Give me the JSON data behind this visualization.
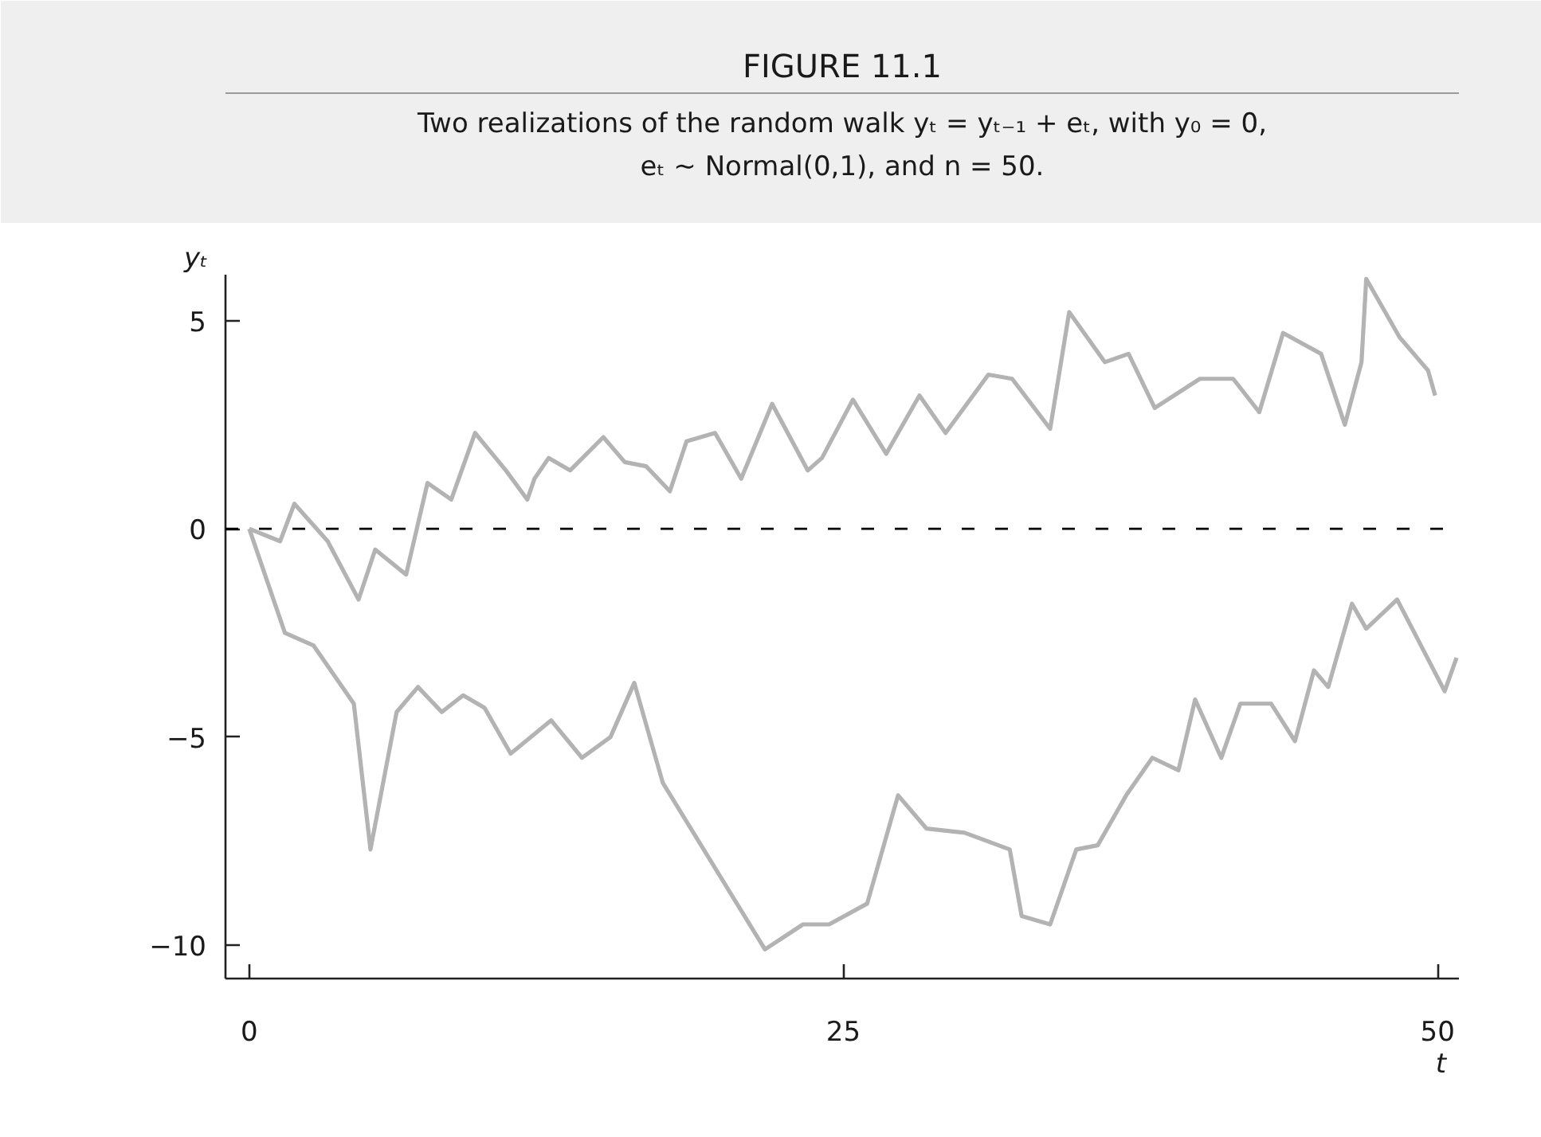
{
  "chart_data": {
    "type": "line",
    "title": "FIGURE 11.1",
    "subtitle": "Two realizations of the random walk yₜ = yₜ₋₁ + eₜ, with y₀ = 0, eₜ ∼ Normal(0,1), and n = 50.",
    "xlabel": "t",
    "ylabel": "yₜ",
    "xlim": [
      -1,
      50.9
    ],
    "ylim": [
      -10.8,
      6.1
    ],
    "xticks": [
      0,
      25,
      50
    ],
    "yticks": [
      {
        "value": -10,
        "label": "−10"
      },
      {
        "value": -5,
        "label": "−5"
      },
      0,
      5
    ],
    "ref_lines": [
      {
        "axis": "y",
        "value": 0,
        "color": "#000000",
        "line_style": "dashed"
      }
    ],
    "series": [
      {
        "color": "#b3b3b3",
        "x": [
          0,
          1.3,
          1.9,
          3.3,
          4.6,
          5.3,
          6.6,
          7.5,
          8.5,
          9.5,
          10.8,
          11.7,
          12.0,
          12.6,
          13.5,
          14.9,
          15.8,
          16.7,
          17.7,
          18.4,
          19.6,
          20.7,
          22.0,
          23.5,
          24.1,
          25.4,
          26.8,
          28.2,
          29.3,
          31.1,
          32.1,
          33.7,
          34.5,
          36.0,
          37.0,
          38.1,
          40.0,
          41.4,
          42.5,
          43.5,
          45.1,
          46.1,
          46.8,
          47.0,
          48.4,
          49.6,
          49.9
        ],
        "values": [
          0,
          -0.3,
          0.6,
          -0.3,
          -1.7,
          -0.5,
          -1.1,
          1.1,
          0.7,
          2.3,
          1.4,
          0.7,
          1.2,
          1.7,
          1.4,
          2.2,
          1.6,
          1.5,
          0.9,
          2.1,
          2.3,
          1.2,
          3.0,
          1.4,
          1.7,
          3.1,
          1.8,
          3.2,
          2.3,
          3.7,
          3.6,
          2.4,
          5.2,
          4.0,
          4.2,
          2.9,
          3.6,
          3.6,
          2.8,
          4.7,
          4.2,
          2.5,
          4.0,
          6.0,
          4.6,
          3.8,
          3.2
        ]
      },
      {
        "color": "#b3b3b3",
        "x": [
          0,
          1.5,
          2.7,
          4.4,
          5.1,
          6.2,
          7.1,
          8.1,
          9.0,
          9.9,
          11.0,
          12.7,
          14.0,
          15.2,
          16.2,
          17.4,
          21.7,
          23.3,
          24.4,
          26.0,
          27.3,
          28.5,
          30.1,
          32.0,
          32.5,
          33.7,
          34.8,
          35.7,
          36.9,
          38.0,
          39.1,
          39.8,
          40.9,
          41.7,
          43.0,
          44.0,
          44.8,
          45.4,
          46.4,
          47.0,
          48.3,
          50.3,
          50.8
        ],
        "values": [
          0,
          -2.5,
          -2.8,
          -4.2,
          -7.7,
          -4.4,
          -3.8,
          -4.4,
          -4.0,
          -4.3,
          -5.4,
          -4.6,
          -5.5,
          -5.0,
          -3.7,
          -6.1,
          -10.1,
          -9.5,
          -9.5,
          -9.0,
          -6.4,
          -7.2,
          -7.3,
          -7.7,
          -9.3,
          -9.5,
          -7.7,
          -7.6,
          -6.4,
          -5.5,
          -5.8,
          -4.1,
          -5.5,
          -4.2,
          -4.2,
          -5.1,
          -3.4,
          -3.8,
          -1.8,
          -2.4,
          -1.7,
          -3.9,
          -3.1
        ]
      }
    ]
  }
}
